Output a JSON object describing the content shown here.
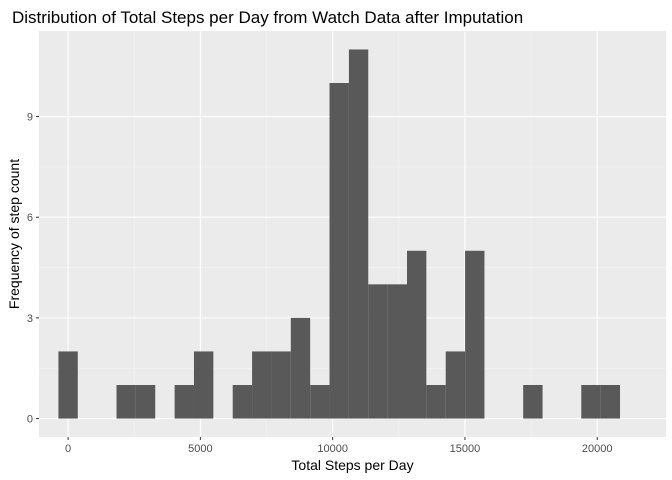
{
  "chart_data": {
    "type": "bar",
    "title": "Distribution of Total Steps per Day from Watch Data after Imputation",
    "xlabel": "Total Steps per Day",
    "ylabel": "Frequency of step count",
    "xlim": [
      -1100,
      22600
    ],
    "ylim": [
      -0.55,
      11.55
    ],
    "x_ticks": [
      0,
      5000,
      10000,
      15000,
      20000
    ],
    "x_tick_labels": [
      "0",
      "5000",
      "10000",
      "15000",
      "20000"
    ],
    "y_ticks": [
      0,
      3,
      6,
      9
    ],
    "y_tick_labels": [
      "0",
      "3",
      "6",
      "9"
    ],
    "bin_width": 732,
    "bin_centers": [
      0,
      732,
      1464,
      2196,
      2928,
      3660,
      4392,
      5124,
      5856,
      6588,
      7320,
      8052,
      8784,
      9516,
      10248,
      10980,
      11712,
      12444,
      13176,
      13908,
      14640,
      15372,
      16104,
      16836,
      17568,
      18300,
      19032,
      19764,
      20496,
      21228
    ],
    "values": [
      2,
      0,
      0,
      1,
      1,
      0,
      1,
      2,
      0,
      1,
      2,
      2,
      3,
      1,
      10,
      11,
      4,
      4,
      5,
      1,
      2,
      5,
      0,
      0,
      1,
      0,
      0,
      1,
      1,
      0
    ],
    "grid": true,
    "legend": "none",
    "colors": {
      "bar": "#595959",
      "panel_background": "#ebebeb",
      "grid_major": "#ffffff",
      "grid_minor": "#f5f5f5",
      "tick": "#333333"
    }
  }
}
